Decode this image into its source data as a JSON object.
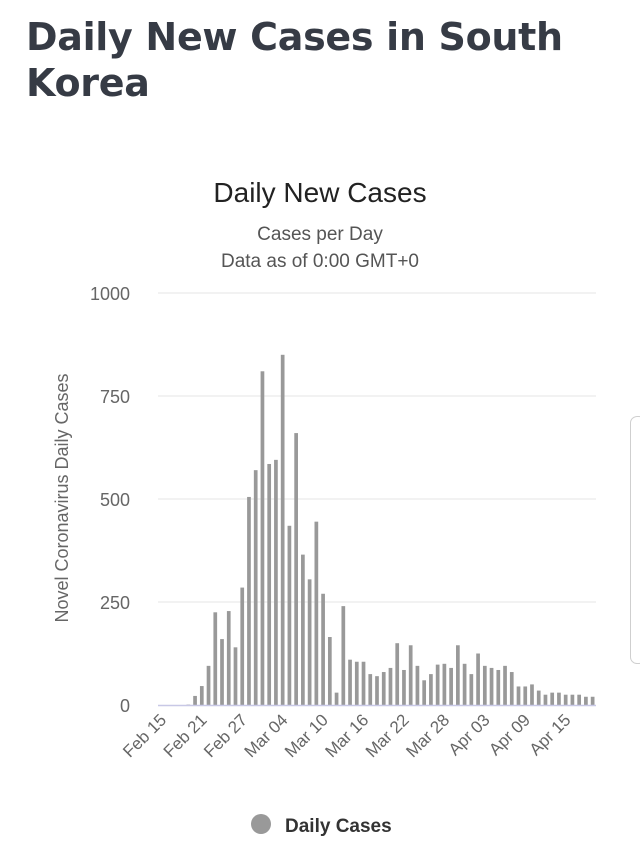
{
  "page": {
    "heading": "Daily New Cases in South Korea"
  },
  "chart_data": {
    "type": "bar",
    "title": "Daily New Cases",
    "subtitle_1": "Cases per Day",
    "subtitle_2": "Data as of 0:00 GMT+0",
    "ylabel": "Novel Coronavirus Daily Cases",
    "xlabel": "",
    "ylim": [
      0,
      1000
    ],
    "yticks": [
      0,
      250,
      500,
      750,
      1000
    ],
    "xtick_labels": [
      "Feb 15",
      "Feb 21",
      "Feb 27",
      "Mar 04",
      "Mar 10",
      "Mar 16",
      "Mar 22",
      "Mar 28",
      "Apr 03",
      "Apr 09",
      "Apr 15"
    ],
    "grid": true,
    "legend": "bottom-center",
    "bar_color": "#999999",
    "series": [
      {
        "name": "Daily Cases",
        "categories": [
          "Feb 15",
          "Feb 16",
          "Feb 17",
          "Feb 18",
          "Feb 19",
          "Feb 20",
          "Feb 21",
          "Feb 22",
          "Feb 23",
          "Feb 24",
          "Feb 25",
          "Feb 26",
          "Feb 27",
          "Feb 28",
          "Feb 29",
          "Mar 01",
          "Mar 02",
          "Mar 03",
          "Mar 04",
          "Mar 05",
          "Mar 06",
          "Mar 07",
          "Mar 08",
          "Mar 09",
          "Mar 10",
          "Mar 11",
          "Mar 12",
          "Mar 13",
          "Mar 14",
          "Mar 15",
          "Mar 16",
          "Mar 17",
          "Mar 18",
          "Mar 19",
          "Mar 20",
          "Mar 21",
          "Mar 22",
          "Mar 23",
          "Mar 24",
          "Mar 25",
          "Mar 26",
          "Mar 27",
          "Mar 28",
          "Mar 29",
          "Mar 30",
          "Mar 31",
          "Apr 01",
          "Apr 02",
          "Apr 03",
          "Apr 04",
          "Apr 05",
          "Apr 06",
          "Apr 07",
          "Apr 08",
          "Apr 09",
          "Apr 10",
          "Apr 11",
          "Apr 12",
          "Apr 13",
          "Apr 14",
          "Apr 15",
          "Apr 16",
          "Apr 17",
          "Apr 18",
          "Apr 19"
        ],
        "values": [
          0,
          0,
          0,
          0,
          1,
          22,
          46,
          95,
          225,
          160,
          228,
          140,
          285,
          505,
          570,
          810,
          585,
          595,
          850,
          435,
          660,
          365,
          305,
          445,
          270,
          165,
          30,
          240,
          110,
          105,
          105,
          75,
          70,
          80,
          90,
          150,
          85,
          145,
          95,
          60,
          75,
          98,
          100,
          90,
          145,
          100,
          75,
          125,
          95,
          90,
          85,
          95,
          80,
          45,
          45,
          50,
          35,
          25,
          30,
          30,
          25,
          25,
          25,
          20,
          20
        ]
      }
    ]
  }
}
